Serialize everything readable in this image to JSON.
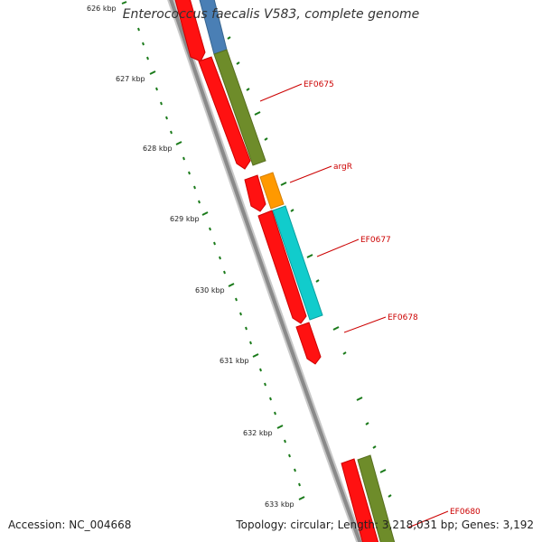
{
  "title": "Enterococcus faecalis V583, complete genome",
  "footer": {
    "accession": "Accession: NC_004668",
    "summary": "Topology: circular; Length: 3,218,031 bp; Genes: 3,192"
  },
  "scale_labels": [
    "626 kbp",
    "627 kbp",
    "628 kbp",
    "629 kbp",
    "630 kbp",
    "631 kbp",
    "632 kbp",
    "633 kbp"
  ],
  "gene_labels": [
    "EF0675",
    "argR",
    "EF0677",
    "EF0678",
    "EF0680"
  ],
  "colors": {
    "backbone": "#8a8a8a",
    "tick": "#1a7a1a",
    "label_line": "#cc0000",
    "label_text": "#cc0000",
    "cds": "#ff1111",
    "blue": "#4a7fb5",
    "olive": "#6e8c2a",
    "orange": "#ff9900",
    "cyan": "#11cccc"
  }
}
